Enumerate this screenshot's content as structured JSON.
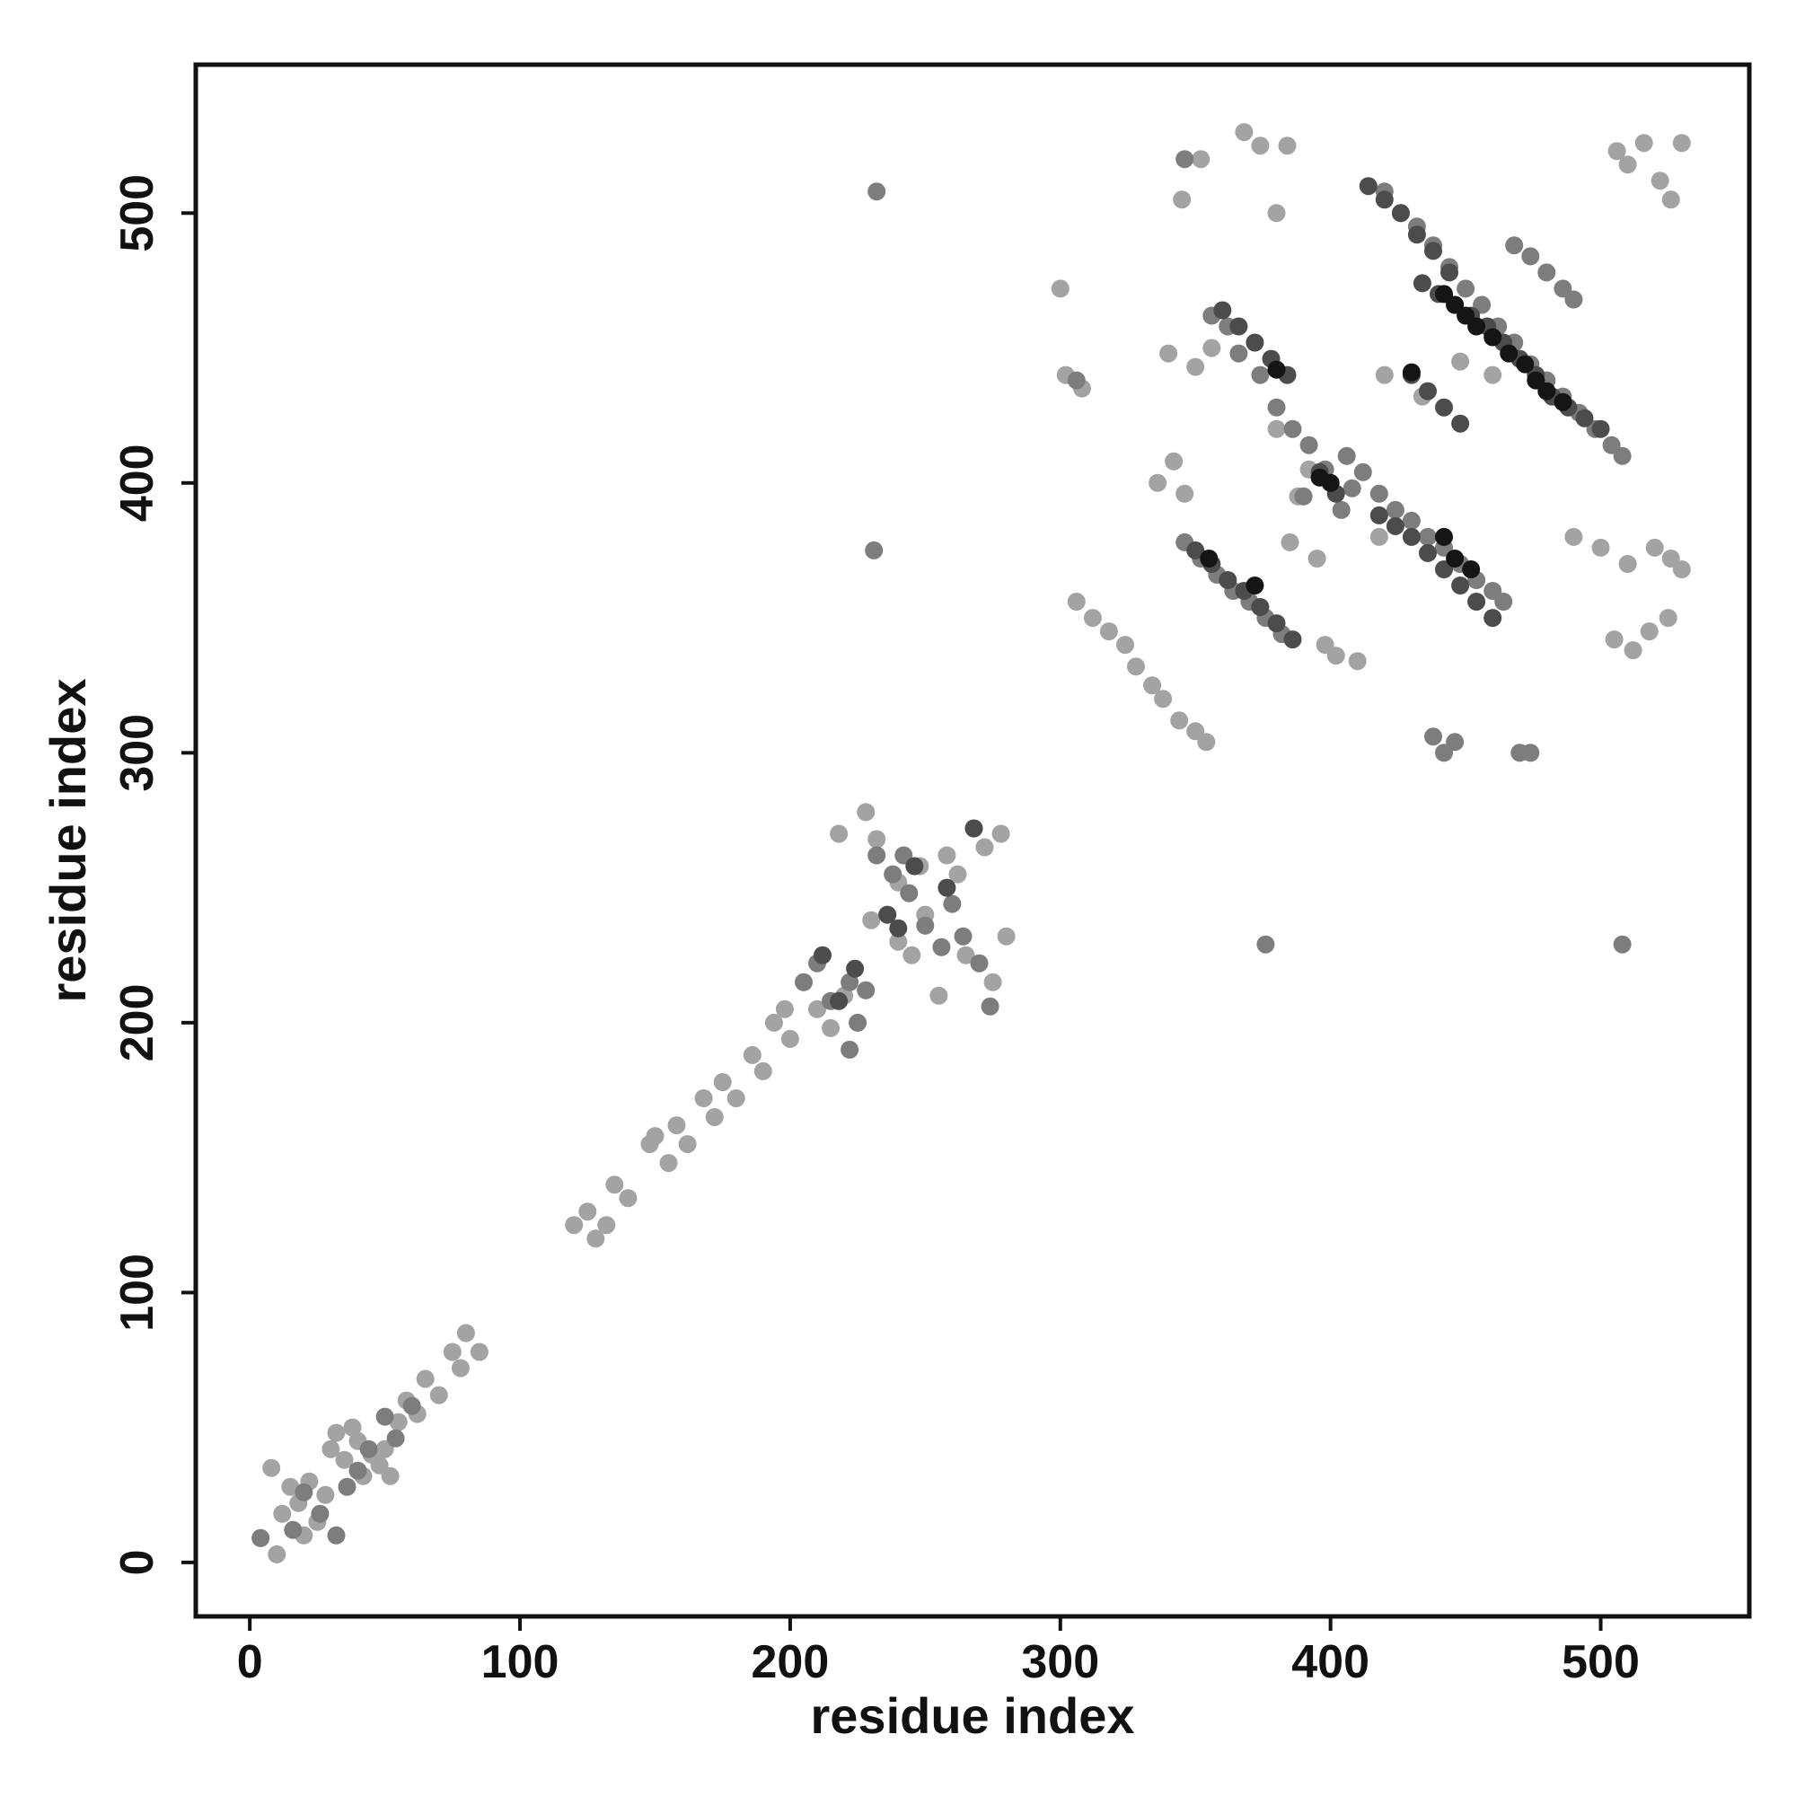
{
  "chart_data": {
    "type": "scatter",
    "title": "",
    "xlabel": "residue index",
    "ylabel": "residue index",
    "xlim": [
      -20,
      555
    ],
    "ylim": [
      -20,
      555
    ],
    "x_ticks": [
      "0",
      "100",
      "200",
      "300",
      "400",
      "500"
    ],
    "y_ticks": [
      "0",
      "100",
      "200",
      "300",
      "400",
      "500"
    ],
    "grid": false,
    "legend": "none",
    "point_colors": {
      "light": "#a3a3a3",
      "mid": "#7d7d7d",
      "dark": "#4c4c4c",
      "black": "#151515"
    },
    "series": [
      {
        "shade": "light",
        "points": [
          [
            4,
            9
          ],
          [
            10,
            3
          ],
          [
            8,
            35
          ],
          [
            12,
            18
          ],
          [
            15,
            28
          ],
          [
            18,
            22
          ],
          [
            20,
            10
          ],
          [
            25,
            15
          ],
          [
            22,
            30
          ],
          [
            28,
            25
          ],
          [
            30,
            42
          ],
          [
            32,
            48
          ],
          [
            35,
            38
          ],
          [
            38,
            50
          ],
          [
            40,
            45
          ],
          [
            42,
            32
          ],
          [
            45,
            40
          ],
          [
            48,
            36
          ],
          [
            50,
            42
          ],
          [
            52,
            32
          ],
          [
            55,
            52
          ],
          [
            58,
            60
          ],
          [
            62,
            55
          ],
          [
            65,
            68
          ],
          [
            70,
            62
          ],
          [
            75,
            78
          ],
          [
            80,
            85
          ],
          [
            78,
            72
          ],
          [
            85,
            78
          ],
          [
            120,
            125
          ],
          [
            125,
            130
          ],
          [
            128,
            120
          ],
          [
            132,
            125
          ],
          [
            135,
            140
          ],
          [
            140,
            135
          ],
          [
            148,
            155
          ],
          [
            150,
            158
          ],
          [
            155,
            148
          ],
          [
            158,
            162
          ],
          [
            162,
            155
          ],
          [
            168,
            172
          ],
          [
            172,
            165
          ],
          [
            175,
            178
          ],
          [
            180,
            172
          ],
          [
            186,
            188
          ],
          [
            190,
            182
          ],
          [
            194,
            200
          ],
          [
            198,
            205
          ],
          [
            200,
            194
          ],
          [
            210,
            205
          ],
          [
            215,
            198
          ],
          [
            220,
            210
          ],
          [
            230,
            238
          ],
          [
            240,
            230
          ],
          [
            248,
            258
          ],
          [
            250,
            240
          ],
          [
            258,
            262
          ],
          [
            262,
            255
          ],
          [
            268,
            272
          ],
          [
            272,
            265
          ],
          [
            278,
            270
          ],
          [
            280,
            232
          ],
          [
            275,
            215
          ],
          [
            265,
            225
          ],
          [
            255,
            210
          ],
          [
            245,
            225
          ],
          [
            218,
            270
          ],
          [
            228,
            278
          ],
          [
            232,
            268
          ],
          [
            240,
            252
          ],
          [
            300,
            472
          ],
          [
            302,
            440
          ],
          [
            308,
            435
          ],
          [
            306,
            356
          ],
          [
            312,
            350
          ],
          [
            318,
            345
          ],
          [
            324,
            340
          ],
          [
            328,
            332
          ],
          [
            334,
            325
          ],
          [
            338,
            320
          ],
          [
            344,
            312
          ],
          [
            350,
            308
          ],
          [
            354,
            304
          ],
          [
            345,
            505
          ],
          [
            352,
            520
          ],
          [
            368,
            530
          ],
          [
            374,
            525
          ],
          [
            380,
            500
          ],
          [
            384,
            525
          ],
          [
            336,
            400
          ],
          [
            342,
            408
          ],
          [
            346,
            396
          ],
          [
            380,
            420
          ],
          [
            388,
            395
          ],
          [
            392,
            405
          ],
          [
            398,
            340
          ],
          [
            402,
            336
          ],
          [
            410,
            334
          ],
          [
            385,
            378
          ],
          [
            395,
            372
          ],
          [
            340,
            448
          ],
          [
            350,
            443
          ],
          [
            356,
            450
          ],
          [
            448,
            445
          ],
          [
            460,
            440
          ],
          [
            420,
            440
          ],
          [
            418,
            380
          ],
          [
            434,
            432
          ],
          [
            490,
            380
          ],
          [
            500,
            376
          ],
          [
            510,
            370
          ],
          [
            520,
            376
          ],
          [
            526,
            372
          ],
          [
            530,
            368
          ],
          [
            505,
            342
          ],
          [
            512,
            338
          ],
          [
            518,
            345
          ],
          [
            525,
            350
          ],
          [
            506,
            523
          ],
          [
            510,
            518
          ],
          [
            516,
            526
          ],
          [
            522,
            512
          ],
          [
            526,
            505
          ],
          [
            530,
            526
          ]
        ]
      },
      {
        "shade": "mid",
        "points": [
          [
            4,
            9
          ],
          [
            16,
            12
          ],
          [
            20,
            26
          ],
          [
            26,
            18
          ],
          [
            32,
            10
          ],
          [
            36,
            28
          ],
          [
            40,
            34
          ],
          [
            44,
            42
          ],
          [
            50,
            54
          ],
          [
            54,
            46
          ],
          [
            60,
            58
          ],
          [
            232,
            508
          ],
          [
            231,
            375
          ],
          [
            376,
            229
          ],
          [
            508,
            229
          ],
          [
            205,
            215
          ],
          [
            210,
            222
          ],
          [
            215,
            208
          ],
          [
            222,
            215
          ],
          [
            225,
            200
          ],
          [
            232,
            262
          ],
          [
            238,
            255
          ],
          [
            244,
            248
          ],
          [
            250,
            236
          ],
          [
            256,
            228
          ],
          [
            260,
            244
          ],
          [
            264,
            232
          ],
          [
            270,
            222
          ],
          [
            274,
            206
          ],
          [
            222,
            190
          ],
          [
            228,
            212
          ],
          [
            242,
            262
          ],
          [
            306,
            438
          ],
          [
            346,
            520
          ],
          [
            356,
            462
          ],
          [
            362,
            458
          ],
          [
            366,
            448
          ],
          [
            374,
            440
          ],
          [
            380,
            428
          ],
          [
            386,
            420
          ],
          [
            392,
            414
          ],
          [
            406,
            410
          ],
          [
            412,
            404
          ],
          [
            418,
            396
          ],
          [
            424,
            390
          ],
          [
            430,
            386
          ],
          [
            436,
            380
          ],
          [
            442,
            376
          ],
          [
            448,
            370
          ],
          [
            454,
            364
          ],
          [
            460,
            360
          ],
          [
            464,
            356
          ],
          [
            420,
            508
          ],
          [
            426,
            500
          ],
          [
            432,
            495
          ],
          [
            438,
            488
          ],
          [
            444,
            480
          ],
          [
            450,
            472
          ],
          [
            456,
            466
          ],
          [
            462,
            458
          ],
          [
            468,
            452
          ],
          [
            474,
            444
          ],
          [
            480,
            438
          ],
          [
            486,
            432
          ],
          [
            492,
            426
          ],
          [
            498,
            420
          ],
          [
            504,
            414
          ],
          [
            508,
            410
          ],
          [
            468,
            488
          ],
          [
            474,
            484
          ],
          [
            480,
            478
          ],
          [
            486,
            472
          ],
          [
            490,
            468
          ],
          [
            438,
            306
          ],
          [
            442,
            300
          ],
          [
            446,
            304
          ],
          [
            470,
            300
          ],
          [
            474,
            300
          ],
          [
            390,
            395
          ],
          [
            398,
            405
          ],
          [
            404,
            390
          ],
          [
            408,
            398
          ],
          [
            346,
            378
          ],
          [
            352,
            372
          ],
          [
            358,
            366
          ],
          [
            364,
            360
          ],
          [
            370,
            356
          ],
          [
            376,
            350
          ],
          [
            382,
            344
          ]
        ]
      },
      {
        "shade": "dark",
        "points": [
          [
            212,
            225
          ],
          [
            218,
            208
          ],
          [
            224,
            220
          ],
          [
            236,
            240
          ],
          [
            240,
            235
          ],
          [
            246,
            258
          ],
          [
            258,
            250
          ],
          [
            268,
            272
          ],
          [
            360,
            464
          ],
          [
            366,
            458
          ],
          [
            372,
            452
          ],
          [
            378,
            446
          ],
          [
            384,
            440
          ],
          [
            396,
            404
          ],
          [
            402,
            396
          ],
          [
            414,
            510
          ],
          [
            420,
            505
          ],
          [
            426,
            500
          ],
          [
            432,
            492
          ],
          [
            438,
            486
          ],
          [
            444,
            478
          ],
          [
            434,
            474
          ],
          [
            440,
            470
          ],
          [
            446,
            466
          ],
          [
            452,
            462
          ],
          [
            458,
            458
          ],
          [
            464,
            452
          ],
          [
            470,
            446
          ],
          [
            476,
            440
          ],
          [
            482,
            432
          ],
          [
            488,
            428
          ],
          [
            494,
            424
          ],
          [
            500,
            420
          ],
          [
            350,
            375
          ],
          [
            356,
            370
          ],
          [
            362,
            364
          ],
          [
            368,
            360
          ],
          [
            374,
            354
          ],
          [
            380,
            348
          ],
          [
            386,
            342
          ],
          [
            430,
            440
          ],
          [
            436,
            434
          ],
          [
            442,
            428
          ],
          [
            448,
            422
          ],
          [
            418,
            388
          ],
          [
            424,
            384
          ],
          [
            430,
            380
          ],
          [
            436,
            374
          ],
          [
            442,
            368
          ],
          [
            448,
            362
          ],
          [
            454,
            356
          ],
          [
            460,
            350
          ]
        ]
      },
      {
        "shade": "black",
        "points": [
          [
            355,
            372
          ],
          [
            372,
            362
          ],
          [
            380,
            442
          ],
          [
            396,
            402
          ],
          [
            400,
            400
          ],
          [
            442,
            470
          ],
          [
            446,
            466
          ],
          [
            450,
            462
          ],
          [
            454,
            458
          ],
          [
            460,
            454
          ],
          [
            466,
            448
          ],
          [
            472,
            444
          ],
          [
            476,
            438
          ],
          [
            480,
            434
          ],
          [
            486,
            430
          ],
          [
            430,
            441
          ],
          [
            442,
            380
          ],
          [
            446,
            372
          ],
          [
            452,
            368
          ]
        ]
      }
    ]
  }
}
